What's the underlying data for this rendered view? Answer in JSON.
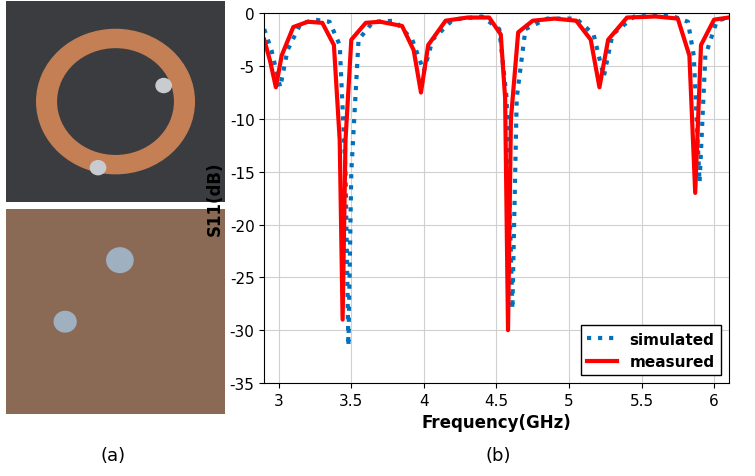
{
  "captions": [
    "(a)",
    "(b)"
  ],
  "chart_data": {
    "type": "line",
    "x_label": "Frequency(GHz)",
    "y_label": "S11(dB)",
    "xlim": [
      2.9,
      6.1
    ],
    "xticks": [
      3,
      3.5,
      4,
      4.5,
      5,
      5.5,
      6
    ],
    "ylim": [
      -35,
      0
    ],
    "yticks": [
      -35,
      -30,
      -25,
      -20,
      -15,
      -10,
      -5,
      0
    ],
    "grid": true,
    "legend": "lower right",
    "series": [
      {
        "name": "simulated",
        "color": "#0072bd",
        "line_style": "dotted",
        "x": [
          2.9,
          2.95,
          3.01,
          3.06,
          3.15,
          3.25,
          3.35,
          3.42,
          3.46,
          3.48,
          3.5,
          3.55,
          3.65,
          3.8,
          3.92,
          4.0,
          4.06,
          4.2,
          4.4,
          4.52,
          4.57,
          4.61,
          4.64,
          4.7,
          4.85,
          5.05,
          5.17,
          5.24,
          5.3,
          5.45,
          5.7,
          5.82,
          5.86,
          5.9,
          5.94,
          6.02,
          6.1
        ],
        "values": [
          -1.5,
          -3.5,
          -7,
          -3.5,
          -1,
          -0.6,
          -0.8,
          -3,
          -15,
          -31.5,
          -15,
          -2.5,
          -0.8,
          -0.7,
          -2.5,
          -5.5,
          -2.5,
          -0.6,
          -0.3,
          -1.5,
          -8,
          -28,
          -8,
          -1.5,
          -0.5,
          -0.5,
          -2,
          -6,
          -2,
          -0.3,
          -0.2,
          -0.8,
          -4,
          -16,
          -4,
          -0.7,
          -0.4
        ]
      },
      {
        "name": "measured",
        "color": "#ff0000",
        "line_style": "solid",
        "x": [
          2.9,
          2.94,
          2.98,
          3.02,
          3.1,
          3.2,
          3.3,
          3.38,
          3.42,
          3.44,
          3.46,
          3.5,
          3.6,
          3.7,
          3.85,
          3.93,
          3.98,
          4.03,
          4.15,
          4.3,
          4.45,
          4.53,
          4.56,
          4.58,
          4.6,
          4.65,
          4.75,
          4.9,
          5.05,
          5.15,
          5.21,
          5.27,
          5.4,
          5.6,
          5.75,
          5.83,
          5.87,
          5.91,
          6.0,
          6.1
        ],
        "values": [
          -2.5,
          -4.5,
          -7,
          -4,
          -1.3,
          -0.8,
          -0.9,
          -3,
          -12,
          -29,
          -12,
          -2.5,
          -0.9,
          -0.8,
          -1.2,
          -3.5,
          -7.5,
          -3,
          -0.7,
          -0.4,
          -0.4,
          -2,
          -8,
          -30,
          -10,
          -1.8,
          -0.7,
          -0.5,
          -0.7,
          -2.5,
          -7,
          -2.5,
          -0.4,
          -0.3,
          -0.5,
          -4,
          -17,
          -3,
          -0.6,
          -0.4
        ]
      }
    ]
  }
}
